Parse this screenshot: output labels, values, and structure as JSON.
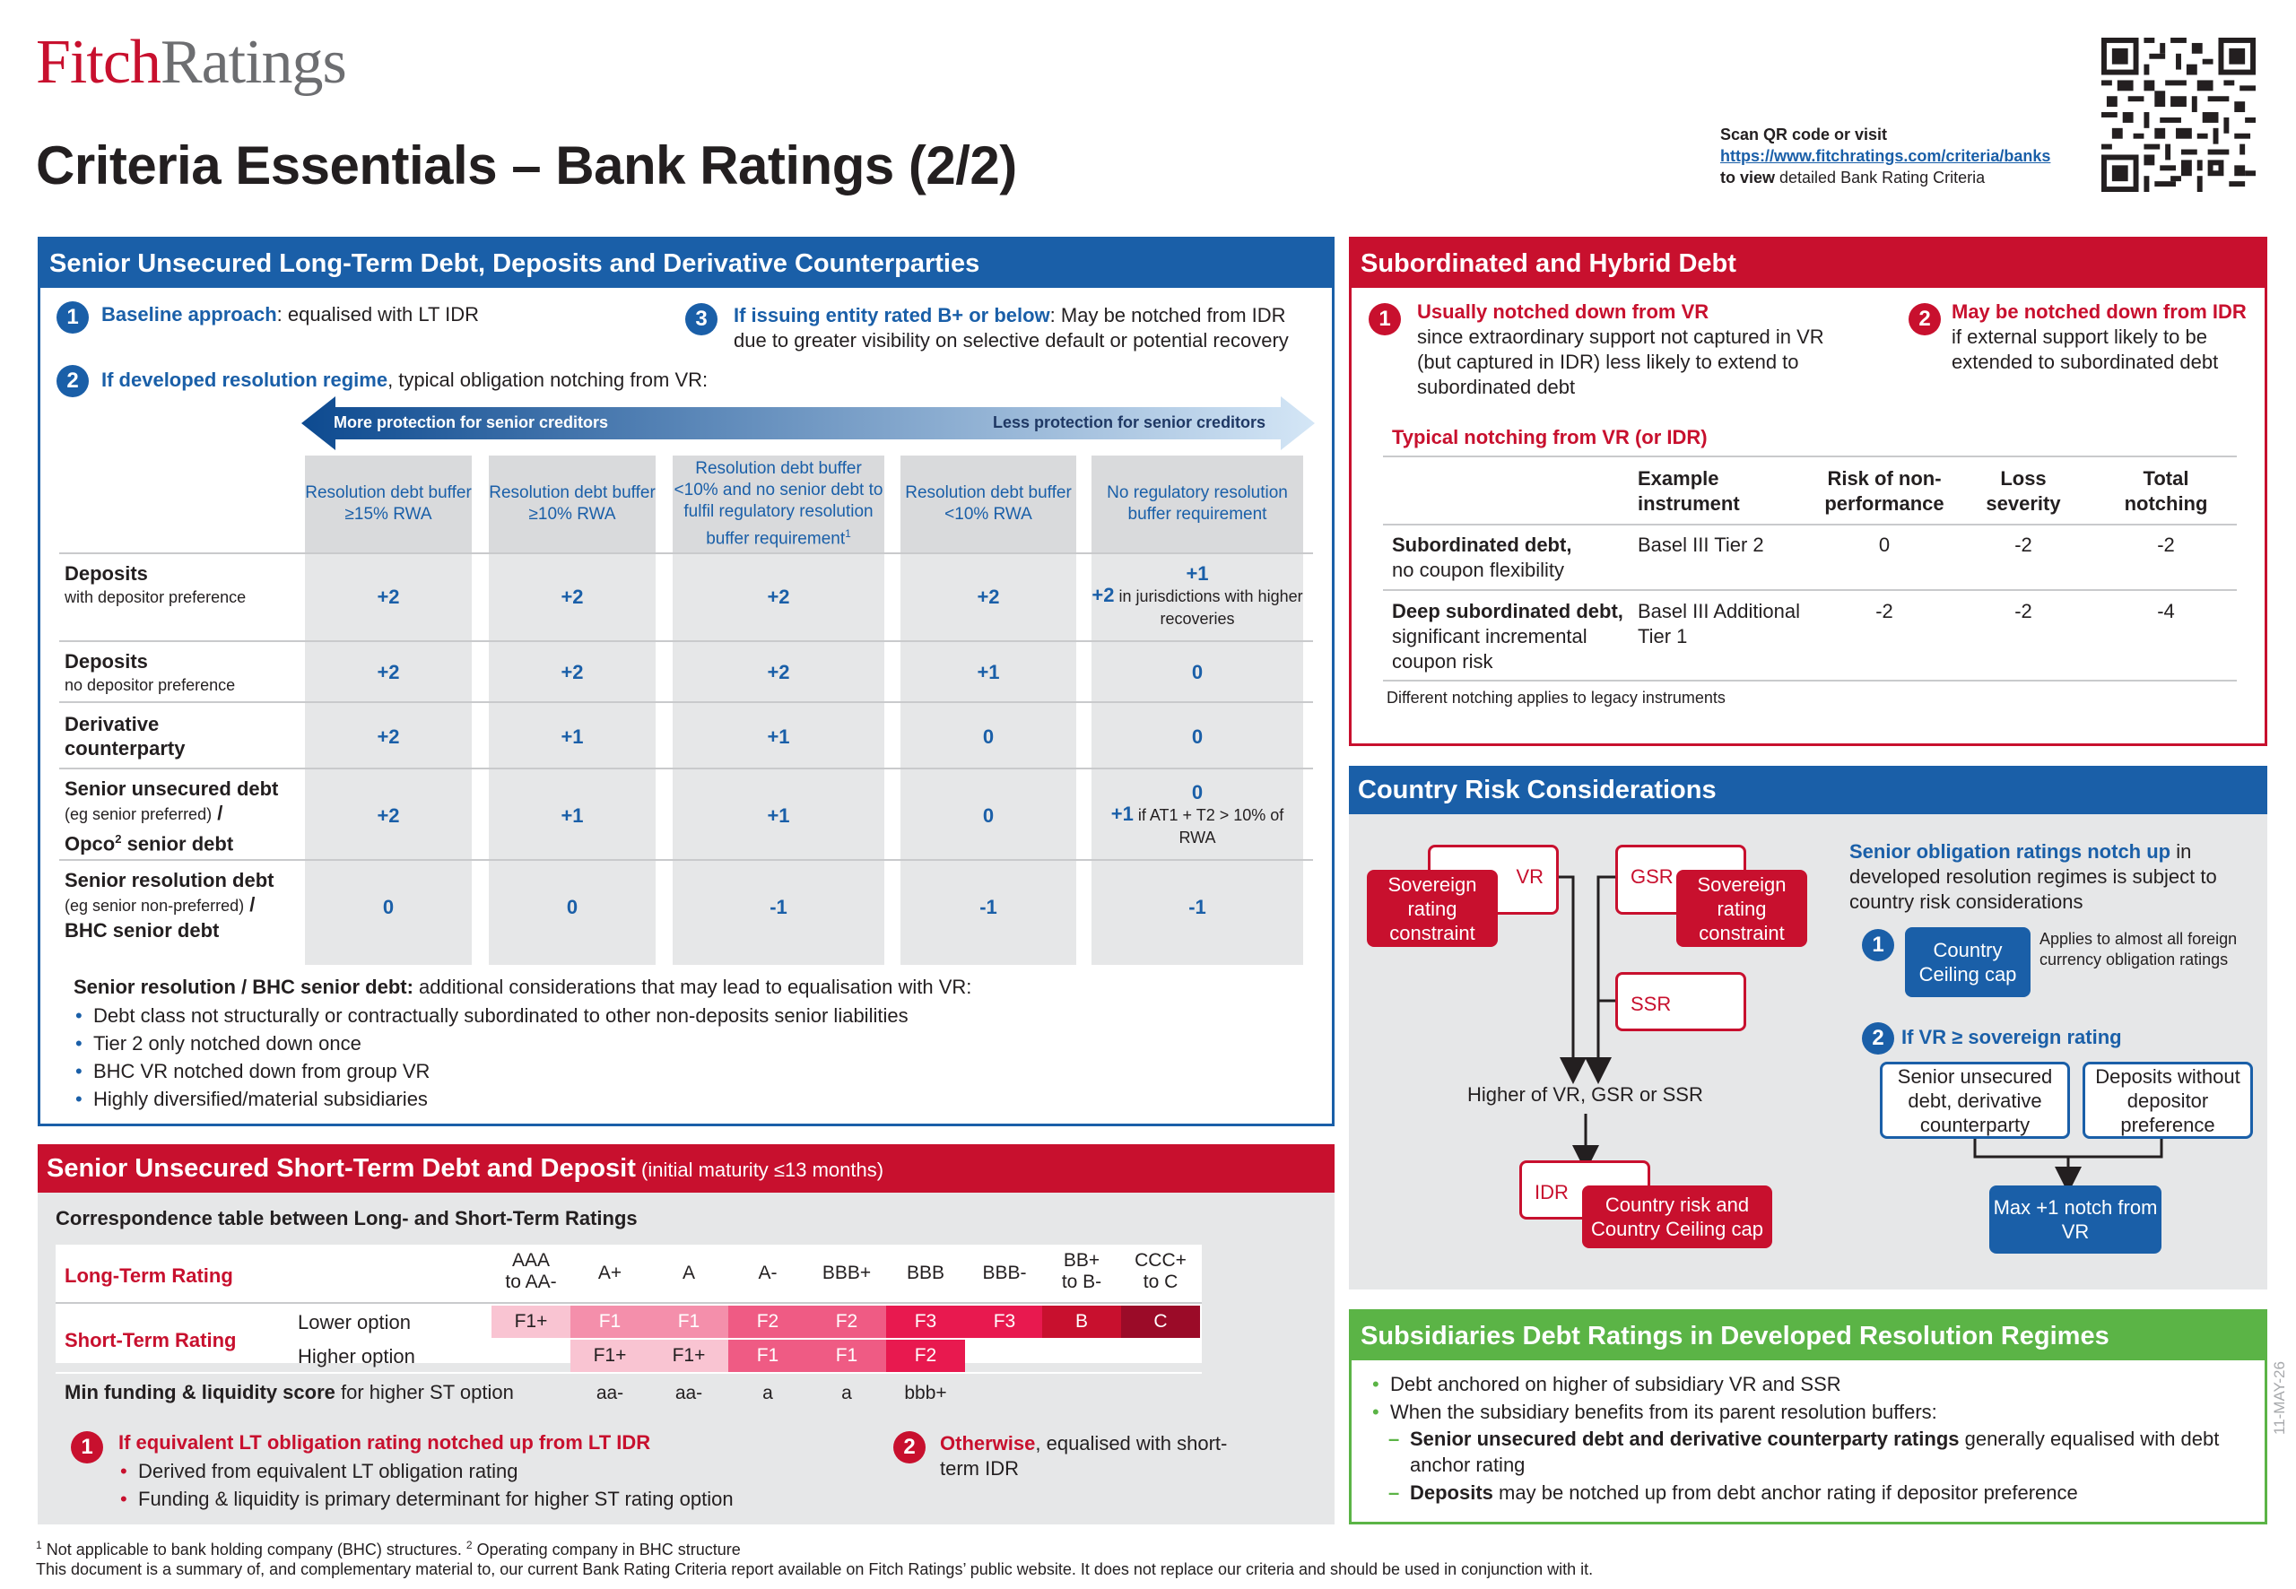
{
  "header": {
    "logo_fitch": "Fitch",
    "logo_ratings": "Ratings",
    "title": "Criteria Essentials – Bank Ratings (2/2)",
    "qr_scan": "Scan QR code or visit",
    "qr_link": "https://www.fitchratings.com/criteria/banks",
    "qr_view_prefix": "to view",
    "qr_view_rest": " detailed Bank Rating Criteria"
  },
  "senior_lt": {
    "title": "Senior Unsecured Long-Term Debt, Deposits and Derivative Counterparties",
    "point1_num": "1",
    "point1_bold": "Baseline approach",
    "point1_rest": ": equalised with LT IDR",
    "point2_num": "2",
    "point2_bold": "If developed resolution regime",
    "point2_rest": ", typical obligation notching from VR:",
    "point3_num": "3",
    "point3_bold": "If issuing entity rated B+ or below",
    "point3_rest": ": May be notched from IDR",
    "point3_line2": "due to greater visibility on selective default or potential recovery",
    "arrow_left": "More protection for senior creditors",
    "arrow_right": "Less protection for senior creditors",
    "columns": [
      "Resolution debt buffer ≥15% RWA",
      "Resolution debt buffer ≥10% RWA",
      "Resolution debt buffer <10% and no senior debt to fulfil regulatory resolution buffer requirement",
      "Resolution debt buffer <10% RWA",
      "No regulatory resolution buffer requirement"
    ],
    "col3_sup": "1",
    "rows": {
      "deposits_pref": {
        "label": "Deposits",
        "sub": "with depositor preference",
        "values": [
          "+2",
          "+2",
          "+2",
          "+2"
        ],
        "last_top": "+1",
        "last_bold": "+2",
        "last_note": " in jurisdictions with higher recoveries"
      },
      "deposits_nopref": {
        "label": "Deposits",
        "sub": "no depositor preference",
        "values": [
          "+2",
          "+2",
          "+2",
          "+1",
          "0"
        ]
      },
      "derivative": {
        "label": "Derivative",
        "label2": "counterparty",
        "values": [
          "+2",
          "+1",
          "+1",
          "0",
          "0"
        ]
      },
      "senior_unsec": {
        "label": "Senior unsecured debt",
        "sub": "(eg senior preferred)",
        "slash": " /",
        "label3": "Opco",
        "sup": "2",
        "label3_rest": " senior debt",
        "values": [
          "+2",
          "+1",
          "+1",
          "0"
        ],
        "last_top": "0",
        "last_bold": "+1",
        "last_note": " if AT1 + T2 > 10% of RWA"
      },
      "senior_res": {
        "label": "Senior resolution debt",
        "sub": "(eg senior non-preferred)",
        "slash": " /",
        "label3": "BHC senior debt",
        "values": [
          "0",
          "0",
          "-1",
          "-1",
          "-1"
        ]
      }
    },
    "considerations_bold": "Senior resolution / BHC senior debt:",
    "considerations_rest": " additional considerations that may lead to equalisation with VR:",
    "bullets": [
      "Debt class not structurally or contractually subordinated to other non-deposits senior liabilities",
      "Tier 2 only notched down once",
      "BHC VR notched down from group VR",
      "Highly diversified/material subsidiaries"
    ]
  },
  "short_term": {
    "title": "Senior Unsecured Short-Term Debt and Deposit",
    "title_small": " (initial maturity ≤13 months)",
    "subtitle": "Correspondence table between Long- and Short-Term Ratings",
    "lt_label": "Long-Term Rating",
    "st_label": "Short-Term Rating",
    "lower_option": "Lower option",
    "higher_option": "Higher option",
    "lt_ratings": [
      "AAA to AA-",
      "A+",
      "A",
      "A-",
      "BBB+",
      "BBB",
      "BBB-",
      "BB+ to B-",
      "CCC+ to C"
    ],
    "lower": [
      "F1+",
      "F1",
      "F1",
      "F2",
      "F2",
      "F3",
      "F3",
      "B",
      "C"
    ],
    "higher": [
      "",
      "F1+",
      "F1+",
      "F1",
      "F1",
      "F2",
      "",
      "",
      ""
    ],
    "lower_colors": [
      "#f9c4d2",
      "#f48fab",
      "#f48fab",
      "#ef5b84",
      "#ef5b84",
      "#e8194f",
      "#e8194f",
      "#c8102e",
      "#9b0b28"
    ],
    "higher_colors": [
      "",
      "#f9c4d2",
      "#f9c4d2",
      "#ef5b84",
      "#ef5b84",
      "#e8194f",
      "",
      "",
      ""
    ],
    "min_label_bold": "Min funding & liquidity score",
    "min_label_rest": " for higher ST option",
    "min_scores": [
      "",
      "aa-",
      "aa-",
      "a",
      "a",
      "bbb+",
      "",
      "",
      ""
    ],
    "point1_num": "1",
    "point1_title": "If equivalent LT obligation rating notched up from LT IDR",
    "point1_bullets": [
      "Derived from equivalent LT obligation rating",
      "Funding & liquidity is primary determinant for higher ST rating option"
    ],
    "point2_num": "2",
    "point2_bold": "Otherwise",
    "point2_rest": ", equalised with short-",
    "point2_line2": "term IDR"
  },
  "subordinated": {
    "title": "Subordinated and Hybrid Debt",
    "point1_num": "1",
    "point1_title": "Usually notched down from VR",
    "point1_lines": [
      "since extraordinary support not captured in VR",
      "(but captured in IDR) less likely to extend to",
      "subordinated debt"
    ],
    "point2_num": "2",
    "point2_title": "May be notched down from IDR",
    "point2_lines": [
      "if external support likely to be",
      "extended to subordinated debt"
    ],
    "table_title": "Typical notching from VR (or IDR)",
    "headers": [
      "Example instrument",
      "Risk of non-performance",
      "Loss severity",
      "Total notching"
    ],
    "row1": {
      "bold": "Subordinated debt,",
      "rest": "no coupon flexibility",
      "instrument": "Basel III Tier 2",
      "risk": "0",
      "loss": "-2",
      "total": "-2"
    },
    "row2": {
      "bold": "Deep subordinated debt,",
      "rest1": "significant incremental",
      "rest2": "coupon risk",
      "instrument1": "Basel III Additional",
      "instrument2": "Tier 1",
      "risk": "-2",
      "loss": "-2",
      "total": "-4"
    },
    "note": "Different notching applies to legacy instruments"
  },
  "country": {
    "title": "Country Risk Considerations",
    "vr": "VR",
    "gsr": "GSR",
    "ssr": "SSR",
    "idr": "IDR",
    "sov_constraint": "Sovereign rating constraint",
    "higher_of": "Higher of VR, GSR or SSR",
    "country_cap": "Country risk and Country Ceiling cap",
    "right_title_bold": "Senior obligation ratings notch up",
    "right_title_rest": " in developed resolution regimes is subject to country risk considerations",
    "p1_num": "1",
    "p1_box": "Country Ceiling cap",
    "p1_note": "Applies to almost all foreign currency obligation ratings",
    "p2_num": "2",
    "p2_title": "If VR ≥ sovereign rating",
    "p2_box1": "Senior unsecured debt, derivative counterparty",
    "p2_box2": "Deposits without depositor preference",
    "p2_result": "Max +1 notch from VR"
  },
  "subsidiaries": {
    "title": "Subsidiaries Debt Ratings in Developed Resolution Regimes",
    "bullet1": "Debt anchored on higher of subsidiary VR and SSR",
    "bullet2": "When the subsidiary benefits from its parent resolution buffers:",
    "dash1_bold": "Senior unsecured debt and derivative counterparty ratings",
    "dash1_rest": " generally equalised with debt anchor rating",
    "dash2_bold": "Deposits",
    "dash2_rest": " may be notched up from debt anchor rating if depositor preference"
  },
  "footer": {
    "note1_sup": "1",
    "note1": " Not applicable to bank holding company (BHC) structures. ",
    "note2_sup": "2",
    "note2": " Operating company in BHC structure",
    "disclaimer": "This document is a summary of, and complementary material to, our current Bank Rating Criteria report available on Fitch Ratings’ public website. It does not replace our criteria and should be used in conjunction with it.",
    "date": "11-MAY-26"
  },
  "colors": {
    "blue": "#1a5fa8",
    "red": "#c8102e",
    "green": "#5bb446",
    "grey": "#e6e7e8"
  }
}
